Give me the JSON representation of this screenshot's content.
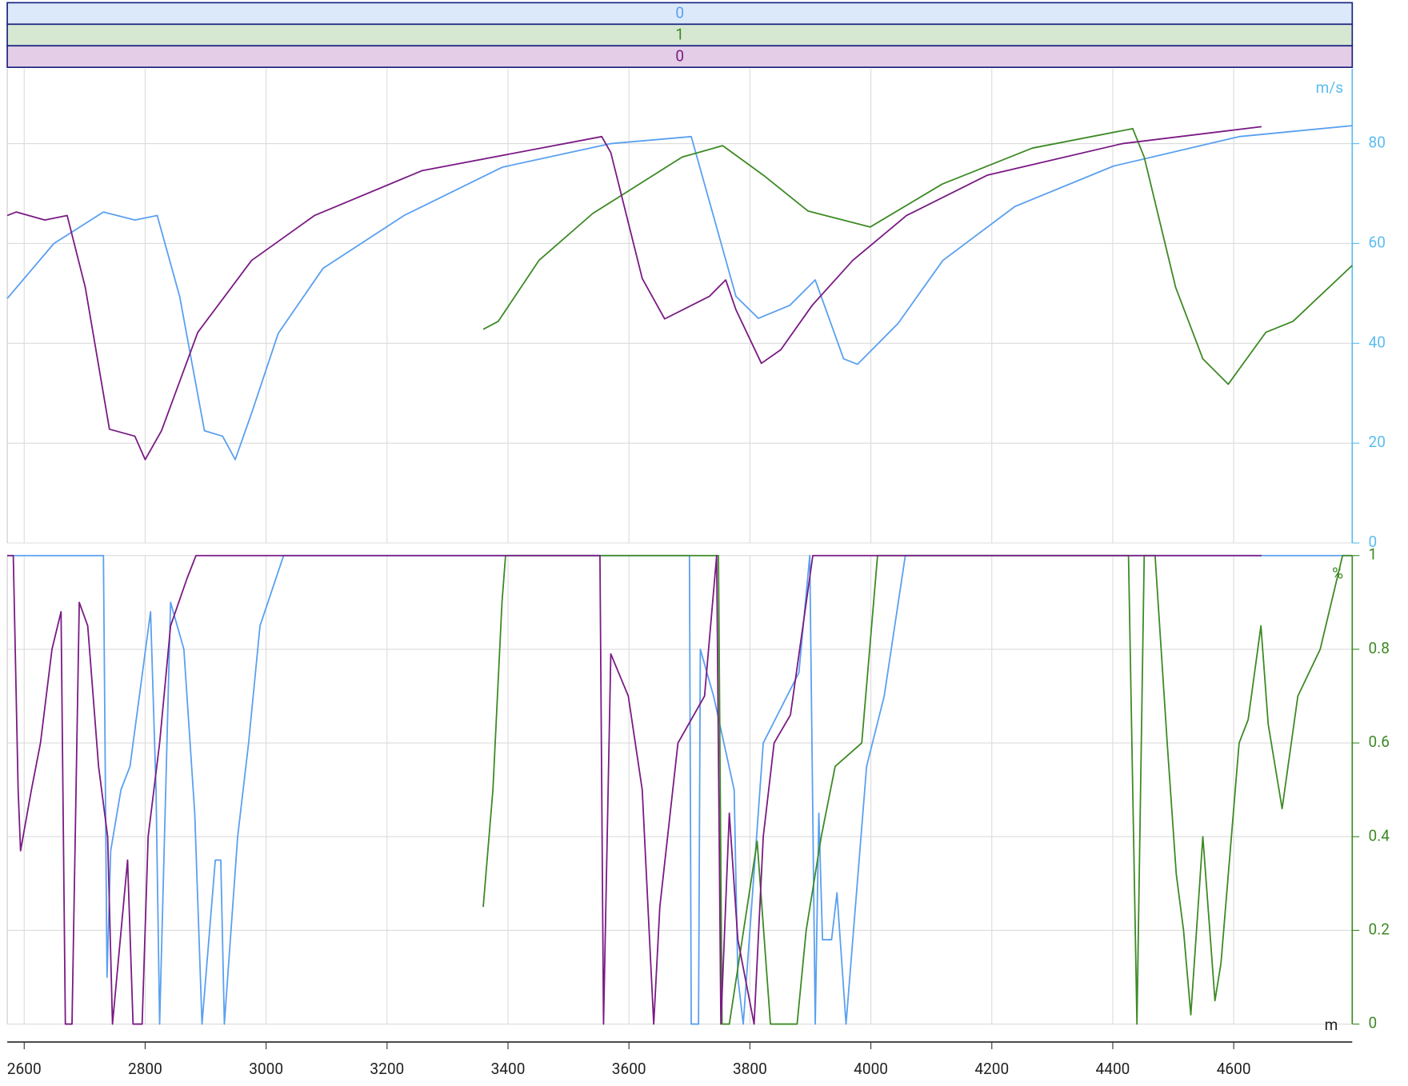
{
  "indicators": [
    {
      "value": 0,
      "color": "#5aa0f0",
      "bg": "#dce9fb"
    },
    {
      "value": 1,
      "color": "#3d8a25",
      "bg": "#d6e8d2"
    },
    {
      "value": 0,
      "color": "#7a1a84",
      "bg": "#e4cde6"
    }
  ],
  "chart_data": [
    {
      "type": "line",
      "y_unit": "m/s",
      "axis_color": "#5bbdf0",
      "grid": true,
      "xlim": [
        2572,
        4796
      ],
      "ylim": [
        0,
        95
      ],
      "yticks": [
        0,
        20,
        40,
        60,
        80
      ],
      "series": [
        {
          "color": "#5aa0f0",
          "x": [
            2572,
            2649,
            2731,
            2783,
            2820,
            2857,
            2898,
            2928,
            2949,
            2976,
            3020,
            3094,
            3228,
            3391,
            3570,
            3703,
            3777,
            3814,
            3866,
            3908,
            3955,
            3978,
            4045,
            4119,
            4238,
            4401,
            4609,
            4796
          ],
          "values": [
            49,
            60,
            66.3,
            64.7,
            65.6,
            49.4,
            22.5,
            21.4,
            16.7,
            26,
            42,
            55,
            65.6,
            75.3,
            80,
            81.4,
            49.4,
            45,
            47.6,
            52.7,
            36.9,
            35.8,
            44,
            56.6,
            67.4,
            75.5,
            81.4,
            83.6
          ]
        },
        {
          "color": "#3d8a25",
          "x": [
            3359,
            3384,
            3451,
            3540,
            3688,
            3755,
            3822,
            3896,
            3999,
            4118,
            4267,
            4433,
            4452,
            4504,
            4549,
            4591,
            4653,
            4698,
            4796
          ],
          "values": [
            42.8,
            44.4,
            56.6,
            66,
            77.3,
            79.6,
            73.7,
            66.5,
            63.3,
            71.9,
            79.1,
            83,
            77.3,
            51.2,
            36.9,
            31.8,
            42.2,
            44.4,
            55.6
          ]
        },
        {
          "color": "#7a1a84",
          "x": [
            2572,
            2587,
            2634,
            2671,
            2701,
            2741,
            2783,
            2800,
            2827,
            2887,
            2976,
            3080,
            3258,
            3555,
            3570,
            3622,
            3659,
            3733,
            3760,
            3777,
            3819,
            3851,
            3903,
            3970,
            4059,
            4193,
            4416,
            4646
          ],
          "values": [
            65.6,
            66.3,
            64.7,
            65.6,
            51.2,
            22.8,
            21.4,
            16.7,
            22.5,
            42.2,
            56.6,
            65.6,
            74.6,
            81.4,
            78.2,
            53,
            44.9,
            49.4,
            52.7,
            46.7,
            36,
            38.7,
            47.6,
            56.6,
            65.6,
            73.7,
            80,
            83.4
          ]
        }
      ]
    },
    {
      "type": "line",
      "y_unit": "%",
      "x_unit": "m",
      "axis_color": "#3d8a25",
      "grid": true,
      "xlim": [
        2572,
        4796
      ],
      "xticks": [
        2600,
        2800,
        3000,
        3200,
        3400,
        3600,
        3800,
        4000,
        4200,
        4400,
        4600
      ],
      "ylim": [
        0,
        1
      ],
      "yticks": [
        0,
        0.2,
        0.4,
        0.6,
        0.8,
        1
      ],
      "series": [
        {
          "color": "#5aa0f0",
          "x": [
            2572,
            2731,
            2737,
            2743,
            2760,
            2775,
            2809,
            2818,
            2824,
            2842,
            2864,
            2882,
            2894,
            2916,
            2925,
            2931,
            2953,
            2971,
            2990,
            3029,
            3700,
            3703,
            3715,
            3718,
            3740,
            3774,
            3780,
            3789,
            3822,
            3881,
            3899,
            3908,
            3914,
            3920,
            3935,
            3944,
            3959,
            3993,
            4022,
            4057,
            4796
          ],
          "values": [
            1,
            1,
            0.1,
            0.37,
            0.5,
            0.55,
            0.88,
            0.5,
            0,
            0.9,
            0.8,
            0.45,
            0,
            0.35,
            0.35,
            0,
            0.4,
            0.6,
            0.85,
            1,
            1,
            0,
            0,
            0.8,
            0.7,
            0.5,
            0.1,
            0,
            0.6,
            0.75,
            1,
            0,
            0.45,
            0.18,
            0.18,
            0.28,
            0,
            0.55,
            0.7,
            1,
            1
          ]
        },
        {
          "color": "#3d8a25",
          "x": [
            3359,
            3375,
            3390,
            3396,
            3748,
            3754,
            3766,
            3812,
            3834,
            3878,
            3893,
            3918,
            3941,
            3985,
            4011,
            4426,
            4440,
            4452,
            4470,
            4490,
            4505,
            4517,
            4529,
            4549,
            4569,
            4579,
            4609,
            4624,
            4645,
            4657,
            4680,
            4706,
            4743,
            4780,
            4796
          ],
          "values": [
            0.25,
            0.5,
            0.9,
            1,
            1,
            0,
            0,
            0.39,
            0,
            0,
            0.2,
            0.4,
            0.55,
            0.6,
            1,
            1,
            0,
            1,
            1,
            0.6,
            0.32,
            0.2,
            0.02,
            0.4,
            0.05,
            0.13,
            0.6,
            0.65,
            0.85,
            0.64,
            0.46,
            0.7,
            0.8,
            1,
            1
          ]
        },
        {
          "color": "#7a1a84",
          "x": [
            2572,
            2582,
            2590,
            2594,
            2612,
            2627,
            2646,
            2661,
            2668,
            2679,
            2691,
            2705,
            2723,
            2738,
            2746,
            2771,
            2780,
            2795,
            2805,
            2824,
            2842,
            2869,
            2884,
            3552,
            3558,
            3570,
            3599,
            3622,
            3641,
            3651,
            3681,
            3725,
            3745,
            3752,
            3766,
            3780,
            3807,
            3822,
            3840,
            3867,
            3904,
            4646
          ],
          "values": [
            1,
            1,
            0.5,
            0.37,
            0.5,
            0.6,
            0.8,
            0.88,
            0,
            0,
            0.9,
            0.85,
            0.55,
            0.4,
            0,
            0.35,
            0,
            0,
            0.4,
            0.6,
            0.85,
            0.95,
            1,
            1,
            0,
            0.79,
            0.7,
            0.5,
            0,
            0.25,
            0.6,
            0.7,
            1,
            0,
            0.45,
            0.18,
            0,
            0.4,
            0.6,
            0.66,
            1,
            1
          ]
        }
      ]
    }
  ]
}
